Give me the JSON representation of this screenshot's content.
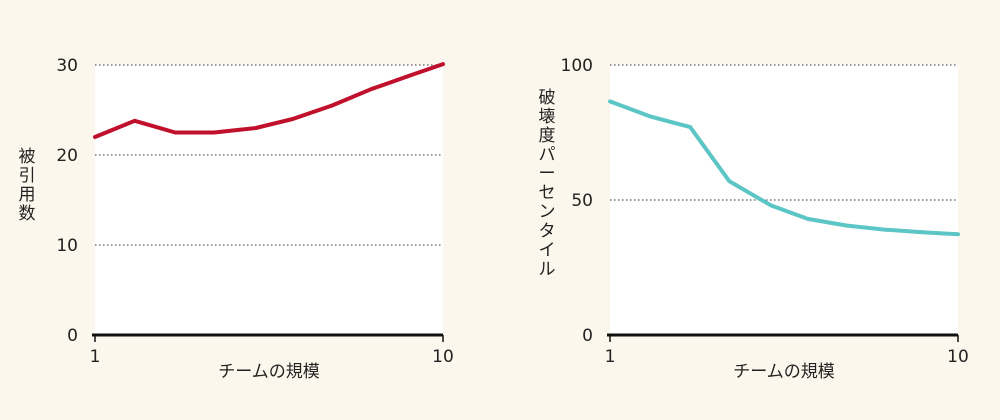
{
  "chart_data": [
    {
      "type": "line",
      "xlabel": "チームの規模",
      "ylabel": "被引用数",
      "xscale": "log",
      "xlim": [
        1,
        10
      ],
      "ylim": [
        0,
        30
      ],
      "x_ticks": [
        "1",
        "10"
      ],
      "y_ticks": [
        "0",
        "10",
        "20",
        "30"
      ],
      "grid": "horizontal dotted",
      "series": [
        {
          "color": "#c0102b",
          "x": [
            1,
            1.3,
            1.7,
            2.2,
            2.9,
            3.7,
            4.8,
            6.2,
            8.0,
            10
          ],
          "y": [
            22.0,
            23.8,
            22.5,
            22.5,
            23.0,
            24.0,
            25.5,
            27.3,
            28.8,
            30.1
          ]
        }
      ]
    },
    {
      "type": "line",
      "xlabel": "チームの規模",
      "ylabel": "破壊度パーセンタイル",
      "xscale": "log",
      "xlim": [
        1,
        10
      ],
      "ylim": [
        0,
        100
      ],
      "x_ticks": [
        "1",
        "10"
      ],
      "y_ticks": [
        "0",
        "50",
        "100"
      ],
      "grid": "horizontal dotted",
      "series": [
        {
          "color": "#5cc5c5",
          "x": [
            1,
            1.3,
            1.7,
            2.2,
            2.9,
            3.7,
            4.8,
            6.2,
            8.0,
            10
          ],
          "y": [
            86.5,
            81.0,
            77.0,
            57.0,
            48.0,
            43.0,
            40.5,
            39.0,
            38.0,
            37.3
          ]
        }
      ]
    }
  ]
}
